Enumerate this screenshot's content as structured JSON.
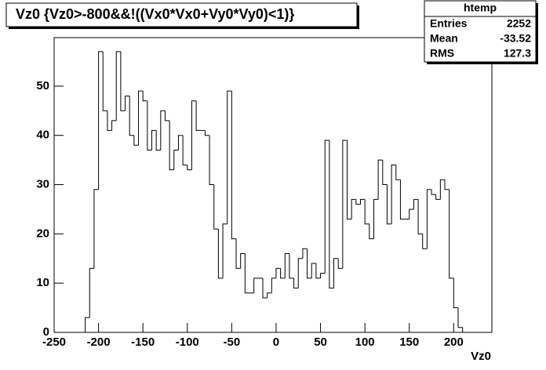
{
  "chart_data": {
    "type": "histogram",
    "title": "Vz0 {Vz0>-800&&!((Vx0*Vx0+Vy0*Vy0)<1)}",
    "x_label": "Vz0",
    "bins": [
      -215,
      -210,
      -205,
      -200,
      -195,
      -190,
      -185,
      -180,
      -175,
      -170,
      -165,
      -160,
      -155,
      -150,
      -145,
      -140,
      -135,
      -130,
      -125,
      -120,
      -115,
      -110,
      -105,
      -100,
      -95,
      -90,
      -85,
      -80,
      -75,
      -70,
      -65,
      -60,
      -55,
      -50,
      -45,
      -40,
      -35,
      -30,
      -25,
      -20,
      -15,
      -10,
      -5,
      0,
      5,
      10,
      15,
      20,
      25,
      30,
      35,
      40,
      45,
      50,
      55,
      60,
      65,
      70,
      75,
      80,
      85,
      90,
      95,
      100,
      105,
      110,
      115,
      120,
      125,
      130,
      135,
      140,
      145,
      150,
      155,
      160,
      165,
      170,
      175,
      180,
      185,
      190,
      195,
      200,
      205,
      210
    ],
    "values": [
      3,
      13,
      29,
      57,
      45,
      41,
      43,
      57,
      45,
      48,
      40,
      38,
      49,
      47,
      37,
      41,
      37,
      45,
      43,
      33,
      37,
      40,
      34,
      33,
      47,
      41,
      41,
      40,
      30,
      21,
      11,
      22,
      49,
      19,
      13,
      16,
      8,
      8,
      11,
      11,
      7,
      8,
      11,
      13,
      11,
      16,
      11,
      9,
      15,
      17,
      11,
      14,
      11,
      12,
      39,
      9,
      15,
      13,
      39,
      23,
      27,
      26,
      27,
      22,
      19,
      27,
      35,
      30,
      22,
      34,
      31,
      23,
      23,
      25,
      27,
      20,
      17,
      29,
      28,
      27,
      31,
      29,
      11,
      5,
      1
    ],
    "color": "#000000",
    "xlim": [
      -250,
      243
    ],
    "ylim": [
      0,
      59.85
    ],
    "xticks": [
      -250,
      -200,
      -150,
      -100,
      -50,
      0,
      50,
      100,
      150,
      200
    ],
    "yticks": [
      0,
      10,
      20,
      30,
      40,
      50
    ],
    "stats": {
      "title": "htemp",
      "rows": [
        [
          "Entries",
          2252
        ],
        [
          "Mean",
          -33.52
        ],
        [
          "RMS",
          127.3
        ]
      ]
    }
  }
}
